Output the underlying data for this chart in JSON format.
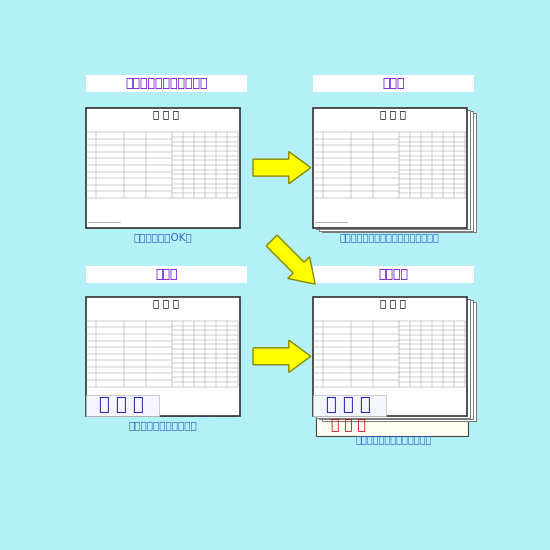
{
  "bg_color": "#b3f0f7",
  "title1": "一枚ずつ書式をプリント",
  "title2": "重ねる",
  "title3": "手書き",
  "title4": "下に複写",
  "subtitle1": "コピー機でもOK！",
  "subtitle2": "必要に応じてホッチキス等で止める。",
  "subtitle3": "ボールペンで書きます。",
  "subtitle4": "書いた文字が下に写ります。",
  "title_color": "#6600cc",
  "subtitle_color": "#3366cc",
  "arrow_color": "#ffff00",
  "arrow_edge_color": "#aaaaaa",
  "form_title": "申 込 書",
  "namae_text": "な ま え",
  "namae_color_blue": "#2222bb",
  "namae_color_red": "#cc0000"
}
